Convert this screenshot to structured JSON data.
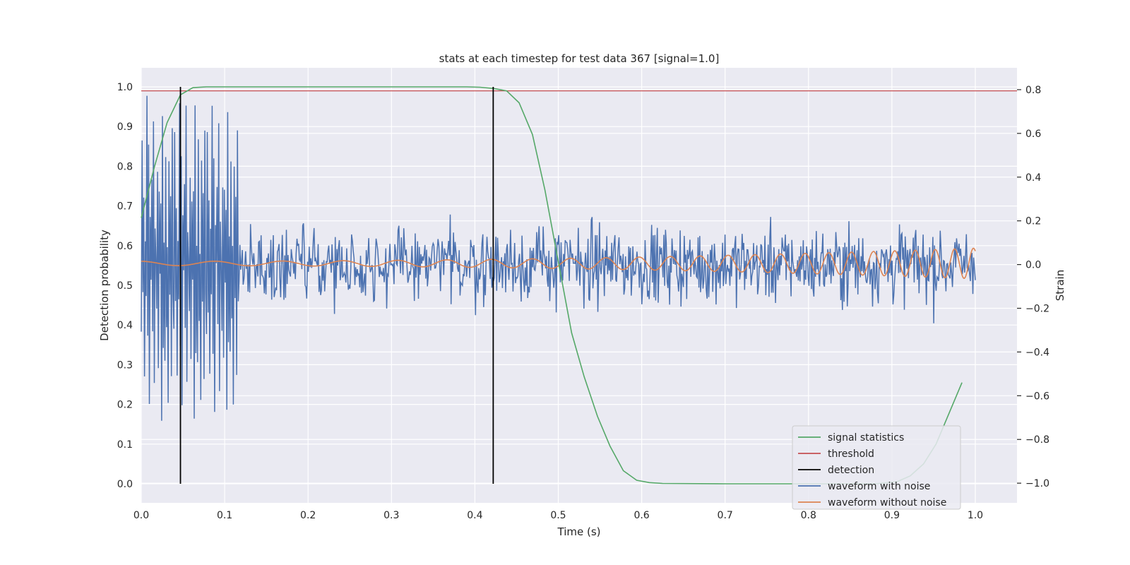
{
  "chart_data": {
    "type": "line",
    "title": "stats at each timestep for test data 367 [signal=1.0]",
    "xlabel": "Time (s)",
    "ylabel": "Detection probability",
    "y2label": "Strain",
    "xlim": [
      0.0,
      1.05
    ],
    "ylim": [
      -0.048,
      1.048
    ],
    "y2lim": [
      -1.09,
      0.9
    ],
    "xticks": [
      "0.0",
      "0.1",
      "0.2",
      "0.3",
      "0.4",
      "0.5",
      "0.6",
      "0.7",
      "0.8",
      "0.9",
      "1.0"
    ],
    "yticks": [
      "0.0",
      "0.1",
      "0.2",
      "0.3",
      "0.4",
      "0.5",
      "0.6",
      "0.7",
      "0.8",
      "0.9",
      "1.0"
    ],
    "y2ticks": [
      "−1.0",
      "−0.8",
      "−0.6",
      "−0.4",
      "−0.2",
      "0.0",
      "0.2",
      "0.4",
      "0.6",
      "0.8"
    ],
    "grid": true,
    "legend_position": "lower-right",
    "series": [
      {
        "name": "signal statistics",
        "axis": "left",
        "color": "#55a868",
        "x": [
          0.0,
          0.016,
          0.031,
          0.047,
          0.062,
          0.078,
          0.094,
          0.12,
          0.2,
          0.3,
          0.39,
          0.406,
          0.422,
          0.438,
          0.453,
          0.469,
          0.484,
          0.5,
          0.516,
          0.531,
          0.547,
          0.562,
          0.578,
          0.594,
          0.609,
          0.625,
          0.7,
          0.8,
          0.88,
          0.906,
          0.922,
          0.938,
          0.953,
          0.969,
          0.984
        ],
        "y": [
          0.67,
          0.8,
          0.91,
          0.98,
          0.998,
          1.0,
          1.0,
          1.0,
          1.0,
          1.0,
          1.0,
          0.999,
          0.996,
          0.99,
          0.96,
          0.88,
          0.74,
          0.56,
          0.38,
          0.27,
          0.17,
          0.095,
          0.033,
          0.009,
          0.003,
          0.001,
          0.0,
          0.0,
          0.0,
          0.005,
          0.02,
          0.05,
          0.1,
          0.18,
          0.255
        ]
      },
      {
        "name": "threshold",
        "axis": "left",
        "color": "#c44e52",
        "x": [
          0.0,
          1.05
        ],
        "y": [
          0.99,
          0.99
        ]
      },
      {
        "name": "detection",
        "axis": "left",
        "color": "#000000",
        "x": [
          0.047,
          0.422
        ],
        "y": [
          1.0,
          1.0
        ]
      },
      {
        "name": "waveform with noise",
        "axis": "right",
        "color": "#4c72b0",
        "x_range": [
          0.0,
          1.0
        ],
        "n_points": 1024,
        "y_sample": [
          -0.35,
          0.64,
          -0.22,
          0.31,
          -0.58,
          0.12,
          -0.16,
          0.81,
          -0.44,
          0.55,
          -0.71,
          0.25,
          -0.05,
          0.42,
          -0.32,
          0.78,
          -0.62,
          0.18,
          0.03,
          -0.26,
          0.44,
          -0.51,
          0.36,
          -0.09,
          0.29,
          -0.77,
          0.83,
          -0.38,
          0.14,
          -0.47,
          0.58,
          -0.28,
          0.07,
          -0.66,
          0.49,
          -0.13,
          0.34,
          -0.56,
          0.71,
          -0.19
        ]
      },
      {
        "name": "waveform without noise",
        "axis": "right",
        "color": "#dd8452",
        "x_range": [
          0.0,
          1.0
        ],
        "description": "chirp from ~11 Hz to ~45 Hz, amplitude growing from 0.01 to 0.07"
      }
    ]
  }
}
